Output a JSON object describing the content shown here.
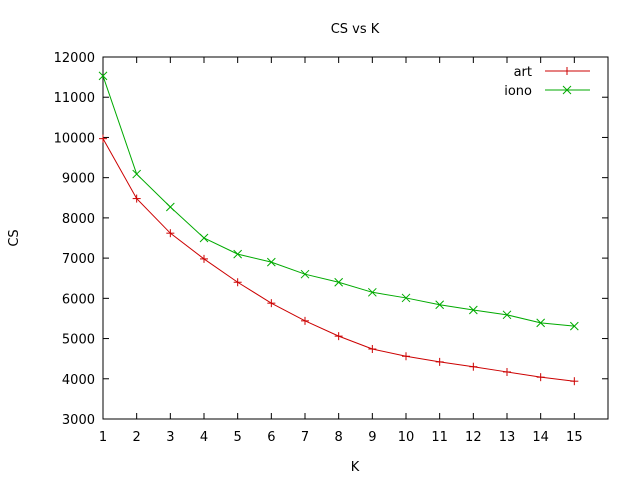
{
  "chart_data": {
    "type": "line",
    "title": "CS vs K",
    "xlabel": "K",
    "ylabel": "CS",
    "xlim": [
      1,
      16
    ],
    "ylim": [
      3000,
      12000
    ],
    "xticks": [
      1,
      2,
      3,
      4,
      5,
      6,
      7,
      8,
      9,
      10,
      11,
      12,
      13,
      14,
      15
    ],
    "yticks": [
      3000,
      4000,
      5000,
      6000,
      7000,
      8000,
      9000,
      10000,
      11000,
      12000
    ],
    "legend_position": "top-right",
    "grid": false,
    "x": [
      1,
      2,
      3,
      4,
      5,
      6,
      7,
      8,
      9,
      10,
      11,
      12,
      13,
      14,
      15
    ],
    "series": [
      {
        "name": "art",
        "color": "#cc0000",
        "marker": "plus",
        "values": [
          9970,
          8480,
          7620,
          6980,
          6400,
          5880,
          5440,
          5060,
          4740,
          4560,
          4420,
          4300,
          4170,
          4040,
          3940
        ]
      },
      {
        "name": "iono",
        "color": "#00aa00",
        "marker": "cross",
        "values": [
          11530,
          9090,
          8270,
          7500,
          7100,
          6900,
          6600,
          6400,
          6150,
          6010,
          5840,
          5710,
          5590,
          5390,
          5310
        ]
      }
    ]
  }
}
